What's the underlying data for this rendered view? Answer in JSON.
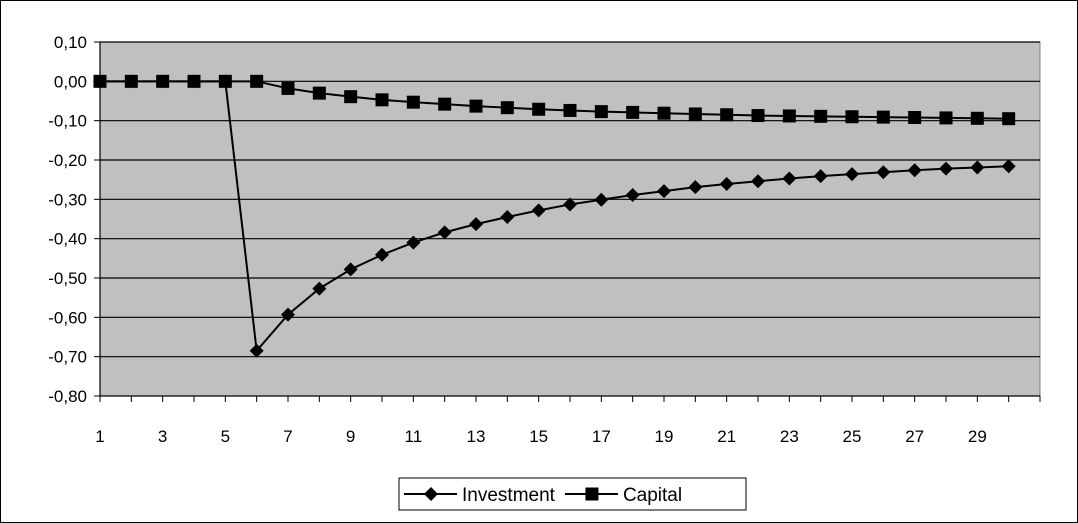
{
  "chart_data": {
    "type": "line",
    "title": "",
    "xlabel": "",
    "ylabel": "",
    "x": [
      1,
      2,
      3,
      4,
      5,
      6,
      7,
      8,
      9,
      10,
      11,
      12,
      13,
      14,
      15,
      16,
      17,
      18,
      19,
      20,
      21,
      22,
      23,
      24,
      25,
      26,
      27,
      28,
      29,
      30
    ],
    "x_tick_labels": [
      "1",
      "3",
      "5",
      "7",
      "9",
      "11",
      "13",
      "15",
      "17",
      "19",
      "21",
      "23",
      "25",
      "27",
      "29"
    ],
    "y_tick_labels": [
      "0,10",
      "0,00",
      "-0,10",
      "-0,20",
      "-0,30",
      "-0,40",
      "-0,50",
      "-0,60",
      "-0,70",
      "-0,80"
    ],
    "ylim": [
      -0.8,
      0.1
    ],
    "y_ticks": [
      0.1,
      0.0,
      -0.1,
      -0.2,
      -0.3,
      -0.4,
      -0.5,
      -0.6,
      -0.7,
      -0.8
    ],
    "grid": "horizontal",
    "plot_background": "#c0c0c0",
    "legend_position": "bottom",
    "series": [
      {
        "name": "Investment",
        "marker": "diamond",
        "color": "#000000",
        "values": [
          0,
          0,
          0,
          0,
          0,
          -0.685,
          -0.593,
          -0.527,
          -0.478,
          -0.441,
          -0.41,
          -0.384,
          -0.363,
          -0.345,
          -0.328,
          -0.313,
          -0.301,
          -0.289,
          -0.279,
          -0.269,
          -0.261,
          -0.254,
          -0.247,
          -0.241,
          -0.236,
          -0.231,
          -0.226,
          -0.222,
          -0.219,
          -0.216
        ]
      },
      {
        "name": "Capital",
        "marker": "square",
        "color": "#000000",
        "values": [
          0,
          0,
          0,
          0,
          0,
          0,
          -0.018,
          -0.03,
          -0.039,
          -0.047,
          -0.053,
          -0.058,
          -0.063,
          -0.067,
          -0.071,
          -0.074,
          -0.077,
          -0.079,
          -0.081,
          -0.083,
          -0.085,
          -0.087,
          -0.088,
          -0.089,
          -0.09,
          -0.091,
          -0.092,
          -0.093,
          -0.094,
          -0.095
        ]
      }
    ]
  }
}
